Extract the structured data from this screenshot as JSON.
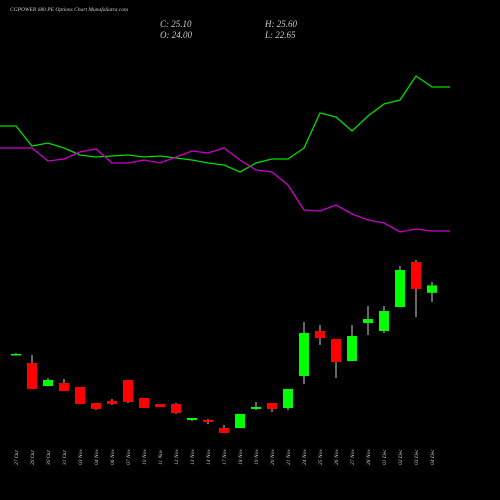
{
  "chart_data": {
    "type": "candlestick",
    "title": "CGPOWER 680 PE Options Chart MunafaSutra.com",
    "info": [
      "C: 25.10",
      "H: 25.60",
      "O: 24.00",
      "L: 22.65"
    ],
    "categories": [
      "27 Oct",
      "29 Oct",
      "30 Oct",
      "31 Oct",
      "03 Nov",
      "04 Nov",
      "06 Nov",
      "07 Nov",
      "10 Nov",
      "11 Nov",
      "12 Nov",
      "13 Nov",
      "14 Nov",
      "17 Nov",
      "18 Nov",
      "19 Nov",
      "20 Nov",
      "21 Nov",
      "24 Nov",
      "25 Nov",
      "26 Nov",
      "27 Nov",
      "28 Nov",
      "01 Dec",
      "02 Dec",
      "03 Dec",
      "04 Dec"
    ],
    "open": [
      14.98,
      13.65,
      10.26,
      10.7,
      10.11,
      7.75,
      8.05,
      11.14,
      8.49,
      7.6,
      7.6,
      5.24,
      5.24,
      4.06,
      4.06,
      6.87,
      7.75,
      7.01,
      11.73,
      18.37,
      17.19,
      13.95,
      19.55,
      18.37,
      21.91,
      28.55,
      24.0
    ],
    "high": [
      15.13,
      14.83,
      11.44,
      11.29,
      10.11,
      7.75,
      8.34,
      11.14,
      8.49,
      7.6,
      7.75,
      5.54,
      5.39,
      4.51,
      6.13,
      7.9,
      7.75,
      9.82,
      19.7,
      19.26,
      17.19,
      19.26,
      22.06,
      22.06,
      27.96,
      28.85,
      25.6
    ],
    "low": [
      14.83,
      9.82,
      10.26,
      9.52,
      7.6,
      6.72,
      7.46,
      7.75,
      7.01,
      7.16,
      6.13,
      5.1,
      4.65,
      3.33,
      4.06,
      6.72,
      6.42,
      6.72,
      10.55,
      16.31,
      11.44,
      13.95,
      17.78,
      18.08,
      21.91,
      20.44,
      22.65
    ],
    "close": [
      14.98,
      9.82,
      11.14,
      9.52,
      7.6,
      6.87,
      7.6,
      7.9,
      7.01,
      7.16,
      6.28,
      5.54,
      4.95,
      3.33,
      6.13,
      7.16,
      6.87,
      9.82,
      18.08,
      17.34,
      13.8,
      17.63,
      20.14,
      21.32,
      27.37,
      24.57,
      25.1
    ],
    "up_color": "#00ff00",
    "down_color": "#ff0000",
    "ylim": [
      -6.56,
      67.2
    ],
    "y2lim": [
      0,
      100
    ],
    "lines": [
      {
        "color": "#00dd00",
        "axis": "y2",
        "values": [
          74.8,
          70.8,
          71.4,
          70.4,
          69,
          68.6,
          68.8,
          69,
          68.6,
          68.8,
          68.4,
          68,
          67.4,
          67,
          65.6,
          67.4,
          68.2,
          68.2,
          70.4,
          77.4,
          76.6,
          73.8,
          76.8,
          79.2,
          80,
          84.8,
          82.6
        ]
      },
      {
        "color": "#cc00cc",
        "axis": "y2",
        "values": [
          70.4,
          70.4,
          67.8,
          68.2,
          69.6,
          70.2,
          67.4,
          67.4,
          68,
          67.4,
          68.6,
          69.8,
          69.4,
          70.4,
          68,
          66,
          65.6,
          63,
          58,
          57.8,
          59,
          57.2,
          56,
          55.4,
          53.6,
          54.2,
          53.8
        ]
      }
    ]
  }
}
